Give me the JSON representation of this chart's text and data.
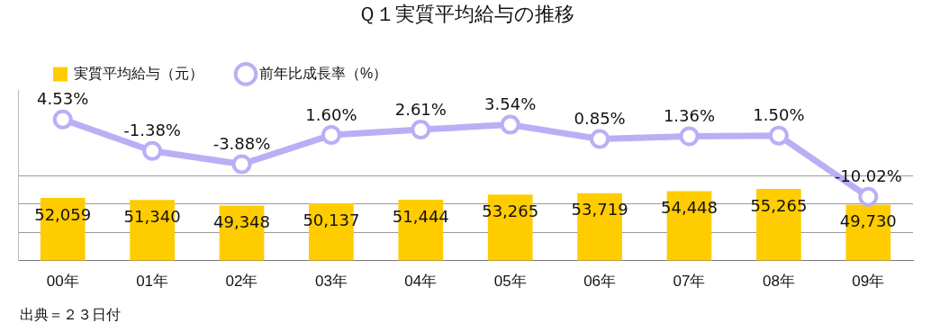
{
  "chart_data": {
    "type": "bar",
    "title": "Ｑ１実質平均給与の推移",
    "categories": [
      "00年",
      "01年",
      "02年",
      "03年",
      "04年",
      "05年",
      "06年",
      "07年",
      "08年",
      "09年"
    ],
    "series": [
      {
        "name": "実質平均給与（元）",
        "color": "#ffcc00",
        "values": [
          52059,
          51340,
          49348,
          50137,
          51444,
          53265,
          53719,
          54448,
          55265,
          49730
        ],
        "value_labels": [
          "52,059",
          "51,340",
          "49,348",
          "50,137",
          "51,444",
          "53,265",
          "53,719",
          "54,448",
          "55,265",
          "49,730"
        ]
      },
      {
        "name": "前年比成長率（%）",
        "type": "line",
        "axis": "y2",
        "color": "#b8b0f5",
        "marker": "circle",
        "values": [
          4.53,
          -1.38,
          -3.88,
          1.6,
          2.61,
          3.54,
          0.85,
          1.36,
          1.5,
          -10.02
        ],
        "value_labels": [
          "4.53%",
          "-1.38%",
          "-3.88%",
          "1.60%",
          "2.61%",
          "3.54%",
          "0.85%",
          "1.36%",
          "1.50%",
          "-10.02%"
        ]
      }
    ],
    "ylim": [
      30000,
      90000
    ],
    "yticks": [
      {
        "value": 30000,
        "label": null
      },
      {
        "value": 40000,
        "label": null
      },
      {
        "value": 50000,
        "label": null
      },
      {
        "value": 60000,
        "label": null
      }
    ],
    "y2lim": [
      -22,
      10
    ],
    "grid": "y",
    "legend": "top left",
    "tick_labels": "x",
    "annotations": [
      "出典＝２３日付"
    ]
  }
}
